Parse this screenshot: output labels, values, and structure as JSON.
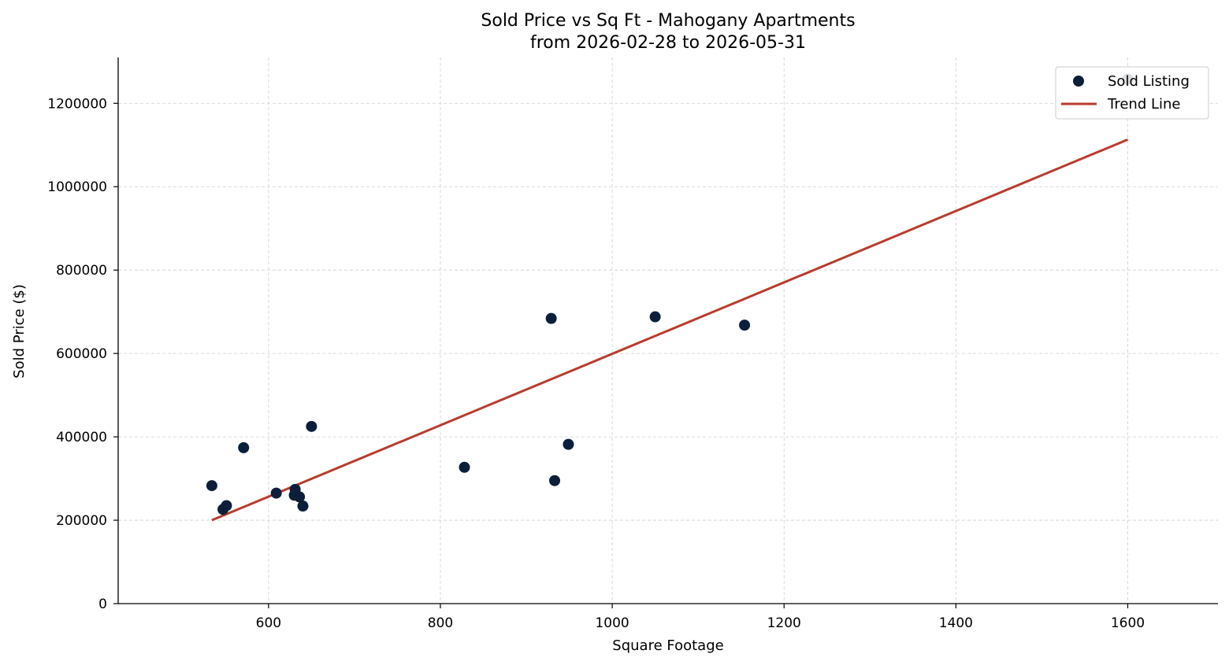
{
  "chart_data": {
    "type": "scatter",
    "title": "Sold Price vs Sq Ft - Mahogany Apartments",
    "subtitle": "from 2026-02-28 to 2026-05-31",
    "xlabel": "Square Footage",
    "ylabel": "Sold Price ($)",
    "xlim": [
      425,
      1705
    ],
    "ylim": [
      0,
      1310000
    ],
    "x_ticks": [
      600,
      800,
      1000,
      1200,
      1400,
      1600
    ],
    "y_ticks": [
      0,
      200000,
      400000,
      600000,
      800000,
      1000000,
      1200000
    ],
    "grid": true,
    "legend_position": "top-right",
    "series": [
      {
        "name": "Sold Listing",
        "kind": "scatter",
        "color": "#0b1f3a",
        "points": [
          {
            "x": 534,
            "y": 283000
          },
          {
            "x": 547,
            "y": 226000
          },
          {
            "x": 551,
            "y": 235000
          },
          {
            "x": 571,
            "y": 374000
          },
          {
            "x": 609,
            "y": 265000
          },
          {
            "x": 630,
            "y": 260000
          },
          {
            "x": 631,
            "y": 274000
          },
          {
            "x": 636,
            "y": 256000
          },
          {
            "x": 640,
            "y": 234000
          },
          {
            "x": 650,
            "y": 425000
          },
          {
            "x": 828,
            "y": 327000
          },
          {
            "x": 929,
            "y": 684000
          },
          {
            "x": 933,
            "y": 295000
          },
          {
            "x": 949,
            "y": 382000
          },
          {
            "x": 1050,
            "y": 688000
          },
          {
            "x": 1154,
            "y": 668000
          },
          {
            "x": 1600,
            "y": 1258000
          }
        ]
      },
      {
        "name": "Trend Line",
        "kind": "line",
        "color": "#b83c2e",
        "points": [
          {
            "x": 534,
            "y": 200000
          },
          {
            "x": 1600,
            "y": 1113000
          }
        ]
      }
    ]
  }
}
